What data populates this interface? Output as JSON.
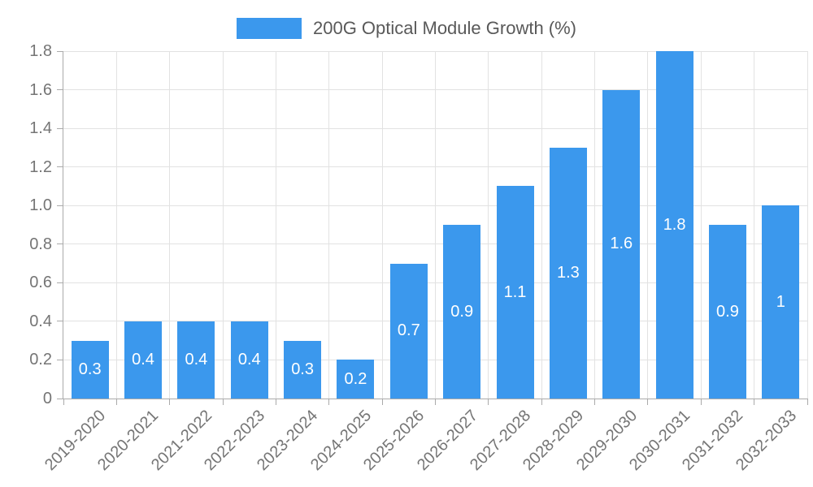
{
  "chart_data": {
    "type": "bar",
    "legend": "200G Optical Module Growth (%)",
    "legend_position": "top",
    "categories": [
      "2019-2020",
      "2020-2021",
      "2021-2022",
      "2022-2023",
      "2023-2024",
      "2024-2025",
      "2025-2026",
      "2026-2027",
      "2027-2028",
      "2028-2029",
      "2029-2030",
      "2030-2031",
      "2031-2032",
      "2032-2033"
    ],
    "series": [
      {
        "name": "200G Optical Module Growth (%)",
        "values": [
          0.3,
          0.4,
          0.4,
          0.4,
          0.3,
          0.2,
          0.7,
          0.9,
          1.1,
          1.3,
          1.6,
          1.8,
          0.9,
          1
        ],
        "labels": [
          "0.3",
          "0.4",
          "0.4",
          "0.4",
          "0.3",
          "0.2",
          "0.7",
          "0.9",
          "1.1",
          "1.3",
          "1.6",
          "1.8",
          "0.9",
          "1"
        ]
      }
    ],
    "title": "",
    "xlabel": "",
    "ylabel": "",
    "ylim": [
      0,
      1.8
    ],
    "ytick_labels": [
      "0",
      "0.2",
      "0.4",
      "0.6",
      "0.8",
      "1.0",
      "1.2",
      "1.4",
      "1.6",
      "1.8"
    ],
    "grid": true,
    "bar_value_position": "inside-center",
    "colors": {
      "bar": "#3b98ed",
      "bar_label": "#ffffff",
      "gridline": "#e2e2e2",
      "axis_line": "#aaaaaa",
      "tick_label": "#757575",
      "legend_text": "#595959",
      "background": "#ffffff"
    }
  }
}
